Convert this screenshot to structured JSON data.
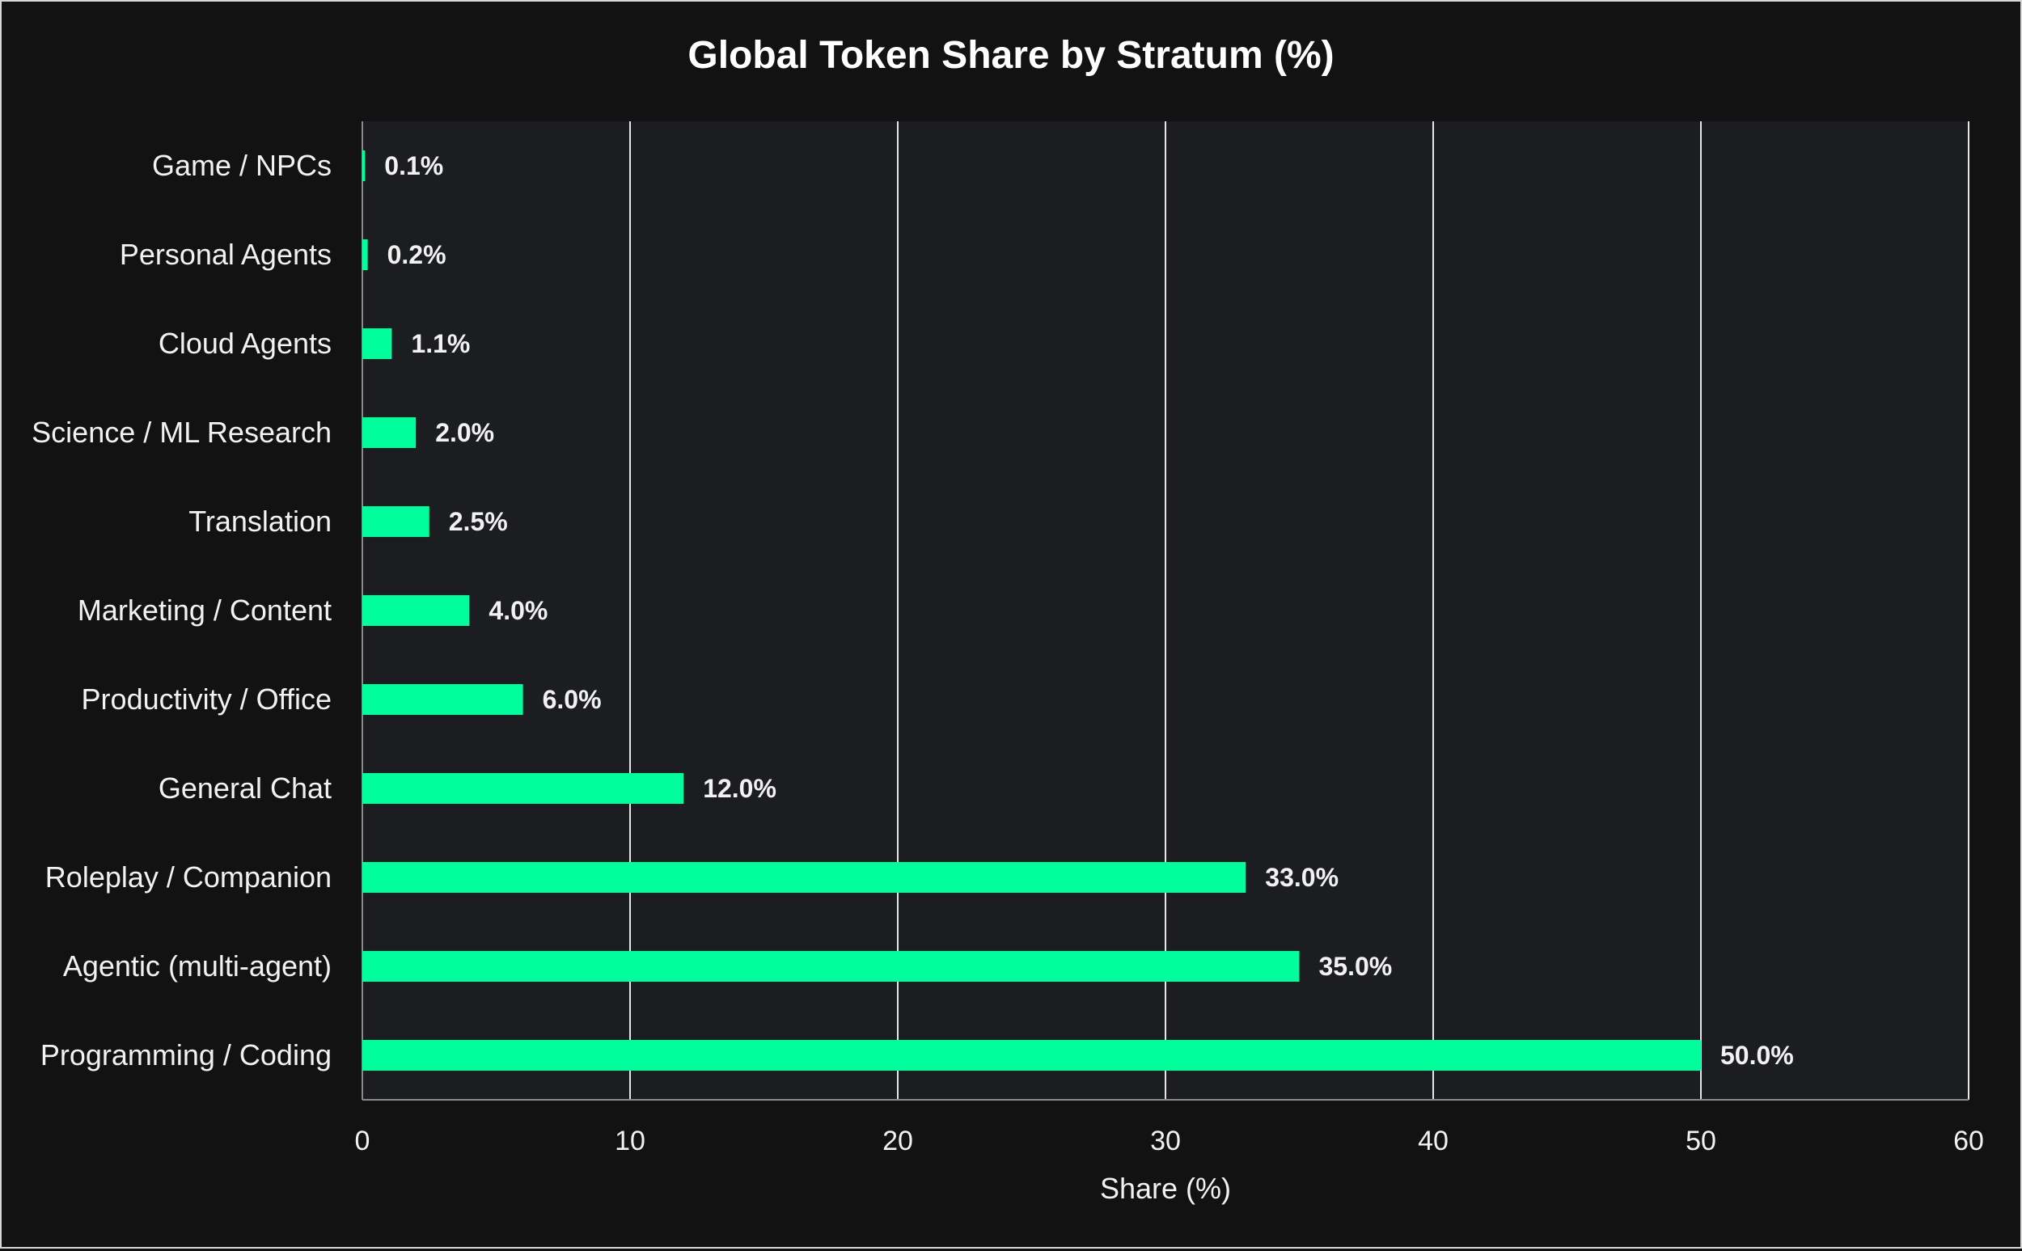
{
  "chart_data": {
    "type": "bar",
    "orientation": "horizontal",
    "title": "Global Token Share by Stratum (%)",
    "xlabel": "Share (%)",
    "ylabel": "",
    "xlim": [
      0,
      60
    ],
    "xticks": [
      0,
      10,
      20,
      30,
      40,
      50,
      60
    ],
    "grid": "vertical",
    "categories": [
      "Game / NPCs",
      "Personal Agents",
      "Cloud Agents",
      "Science / ML Research",
      "Translation",
      "Marketing / Content",
      "Productivity / Office",
      "General Chat",
      "Roleplay / Companion",
      "Agentic (multi-agent)",
      "Programming / Coding"
    ],
    "values": [
      0.1,
      0.2,
      1.1,
      2.0,
      2.5,
      4.0,
      6.0,
      12.0,
      33.0,
      35.0,
      50.0
    ],
    "value_labels": [
      "0.1%",
      "0.2%",
      "1.1%",
      "2.0%",
      "2.5%",
      "4.0%",
      "6.0%",
      "12.0%",
      "33.0%",
      "35.0%",
      "50.0%"
    ],
    "colors": {
      "bar": "#00ff9c",
      "plot_background": "#1c1d20",
      "page_background": "#121212",
      "grid": "#e6e6e6",
      "text": "#f2f2f2"
    }
  }
}
